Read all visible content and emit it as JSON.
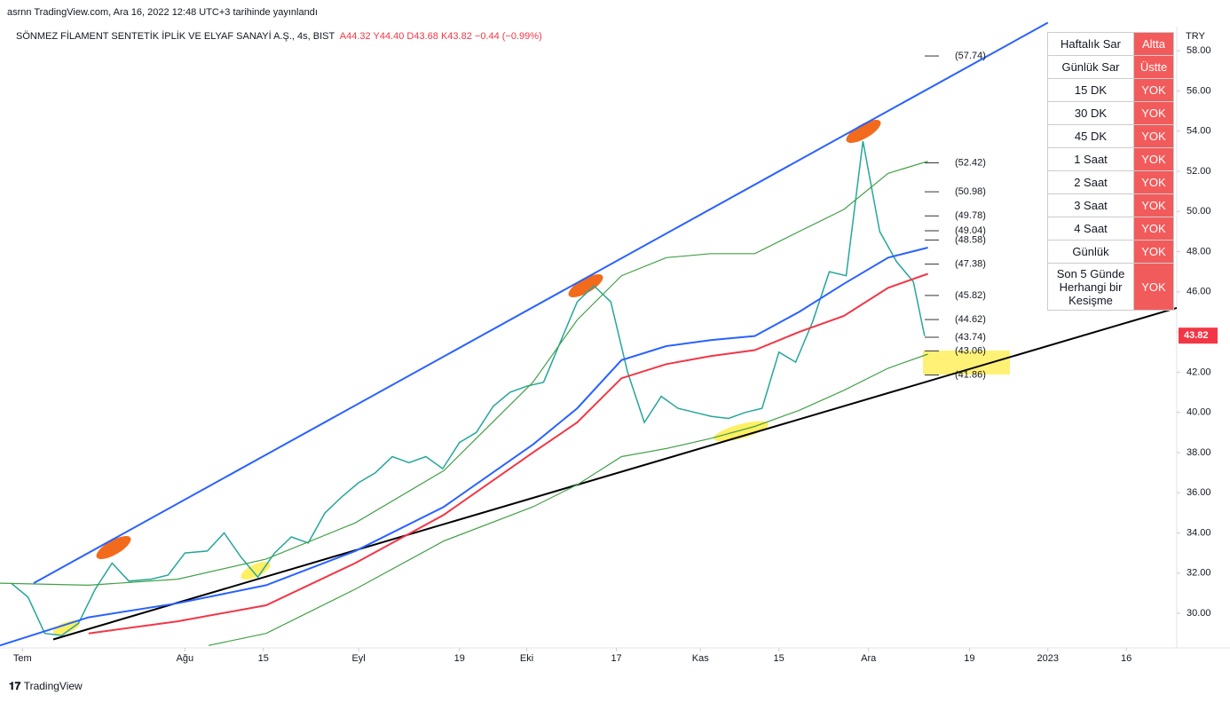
{
  "header": {
    "published": "asrnn TradingView.com, Ara 16, 2022 12:48 UTC+3 tarihinde yayınlandı",
    "symbol": "SÖNMEZ FİLAMENT SENTETİK İPLİK VE ELYAF SANAYİ A.Ş., 4s, BIST",
    "open": "A44.32",
    "high": "Y44.40",
    "low": "D43.68",
    "close": "K43.82",
    "change": "−0.44 (−0.99%)",
    "brand": "TradingView"
  },
  "chart_data": {
    "type": "line",
    "currency": "TRY",
    "xlim": [
      -2,
      208
    ],
    "ylim": [
      28.28,
      59.2
    ],
    "xticks": [
      {
        "value": 2,
        "label": "Tem"
      },
      {
        "value": 31,
        "label": "Ağu"
      },
      {
        "value": 45,
        "label": "15"
      },
      {
        "value": 62,
        "label": "Eyl"
      },
      {
        "value": 80,
        "label": "19"
      },
      {
        "value": 92,
        "label": "Eki"
      },
      {
        "value": 108,
        "label": "17"
      },
      {
        "value": 123,
        "label": "Kas"
      },
      {
        "value": 137,
        "label": "15"
      },
      {
        "value": 153,
        "label": "Ara"
      },
      {
        "value": 171,
        "label": "19"
      },
      {
        "value": 185,
        "label": "2023"
      },
      {
        "value": 199,
        "label": "16"
      }
    ],
    "yticks": [
      {
        "value": 30,
        "label": "30.00"
      },
      {
        "value": 32,
        "label": "32.00"
      },
      {
        "value": 34,
        "label": "34.00"
      },
      {
        "value": 36,
        "label": "36.00"
      },
      {
        "value": 38,
        "label": "38.00"
      },
      {
        "value": 40,
        "label": "40.00"
      },
      {
        "value": 42,
        "label": "42.00"
      },
      {
        "value": 44,
        "label": "44.00"
      },
      {
        "value": 46,
        "label": "46.00"
      },
      {
        "value": 48,
        "label": "48.00"
      },
      {
        "value": 50,
        "label": "50.00"
      },
      {
        "value": 52,
        "label": "52.00"
      },
      {
        "value": 54,
        "label": "54.00"
      },
      {
        "value": 56,
        "label": "56.00"
      },
      {
        "value": 58,
        "label": "58.00"
      }
    ],
    "grid": false,
    "series": [
      {
        "color": "#26a69a",
        "width": 1.5,
        "x": [
          0,
          3,
          6,
          9,
          12,
          15,
          18,
          21,
          25,
          28,
          31,
          35,
          38,
          41,
          44,
          47,
          50,
          53,
          56,
          59,
          62,
          65,
          68,
          71,
          74,
          77,
          80,
          83,
          86,
          89,
          92,
          95,
          98,
          101,
          104,
          107,
          110,
          113,
          116,
          119,
          122,
          125,
          128,
          131,
          134,
          137,
          140,
          143,
          146,
          149,
          152,
          155,
          158,
          161,
          163
        ],
        "values": [
          31.5,
          30.8,
          29.0,
          28.9,
          29.5,
          31.2,
          32.5,
          31.6,
          31.7,
          31.9,
          33.0,
          33.1,
          34.0,
          32.8,
          31.8,
          33.0,
          33.8,
          33.5,
          35.0,
          35.8,
          36.5,
          37.0,
          37.8,
          37.5,
          37.8,
          37.2,
          38.5,
          39.0,
          40.3,
          41.0,
          41.3,
          41.5,
          43.5,
          45.5,
          46.3,
          45.5,
          42.0,
          39.5,
          40.8,
          40.2,
          40.0,
          39.8,
          39.7,
          40.0,
          40.2,
          43.0,
          42.5,
          44.5,
          47.0,
          46.8,
          53.5,
          49.0,
          47.5,
          46.5,
          43.8
        ]
      },
      {
        "color": "#2962ff",
        "width": 2,
        "x": [
          -2,
          13.8,
          29.7,
          45.5,
          61.4,
          77.2,
          93.1,
          101,
          108.9,
          116.9,
          124.8,
          132.7,
          140.6,
          148.6,
          156.5,
          163.6
        ],
        "values": [
          28.4,
          29.8,
          30.5,
          31.4,
          33.1,
          35.3,
          38.4,
          40.2,
          42.6,
          43.3,
          43.6,
          43.8,
          45.0,
          46.4,
          47.7,
          48.2
        ]
      },
      {
        "color": "#f23645",
        "width": 2,
        "x": [
          13.8,
          29.7,
          45.5,
          61.4,
          77.2,
          93.1,
          101,
          108.9,
          116.9,
          124.8,
          132.7,
          140.6,
          148.6,
          156.5,
          163.6
        ],
        "values": [
          29.0,
          29.6,
          30.4,
          32.5,
          34.9,
          38.0,
          39.5,
          41.7,
          42.4,
          42.8,
          43.1,
          44.0,
          44.8,
          46.2,
          46.9
        ]
      },
      {
        "color": "#43a047",
        "width": 1.2,
        "x": [
          35.2,
          45.5,
          61.4,
          77.2,
          93.1,
          101,
          108.9,
          116.9,
          124.8,
          132.7,
          140.6,
          148.6,
          156.5,
          163.6
        ],
        "values": [
          28.4,
          29.0,
          31.2,
          33.6,
          35.3,
          36.4,
          37.8,
          38.2,
          38.7,
          39.3,
          40.1,
          41.1,
          42.2,
          42.9
        ]
      },
      {
        "color": "#43a047",
        "width": 1.2,
        "x": [
          -2,
          13.8,
          29.7,
          45.5,
          61.4,
          77.2,
          93.1,
          101,
          108.9,
          116.9,
          124.8,
          132.7,
          140.6,
          148.6,
          156.5,
          163.6
        ],
        "values": [
          31.5,
          31.4,
          31.7,
          32.7,
          34.5,
          37.1,
          41.5,
          44.6,
          46.8,
          47.7,
          47.9,
          47.9,
          49.0,
          50.1,
          51.9,
          52.5
        ]
      }
    ],
    "trendlines": [
      {
        "color": "#2962ff",
        "x": [
          4,
          185
        ],
        "values": [
          31.5,
          59.4
        ]
      },
      {
        "color": "#000000",
        "x": [
          7.5,
          208
        ],
        "values": [
          28.7,
          45.2
        ]
      }
    ],
    "levels": {
      "values": [
        57.74,
        52.42,
        50.98,
        49.78,
        49.04,
        48.58,
        47.38,
        45.82,
        44.62,
        43.74,
        43.06,
        41.86
      ],
      "value_labels": [
        "(57.74)",
        "(52.42)",
        "(50.98)",
        "(49.78)",
        "(49.04)",
        "(48.58)",
        "(47.38)",
        "(45.82)",
        "(44.62)",
        "(43.74)",
        "(43.06)",
        "(41.86)"
      ]
    },
    "last_price": 43.82,
    "last_color": "#f23645"
  },
  "table": {
    "rows": [
      [
        "Haftalık Sar",
        "Altta"
      ],
      [
        "Günlük Sar",
        "Üstte"
      ],
      [
        "15 DK",
        "YOK"
      ],
      [
        "30 DK",
        "YOK"
      ],
      [
        "45 DK",
        "YOK"
      ],
      [
        "1 Saat",
        "YOK"
      ],
      [
        "2 Saat",
        "YOK"
      ],
      [
        "3 Saat",
        "YOK"
      ],
      [
        "4 Saat",
        "YOK"
      ],
      [
        "Günlük",
        "YOK"
      ],
      [
        "Son 5 Günde Herhangi bir Kesişme",
        "YOK"
      ]
    ]
  }
}
